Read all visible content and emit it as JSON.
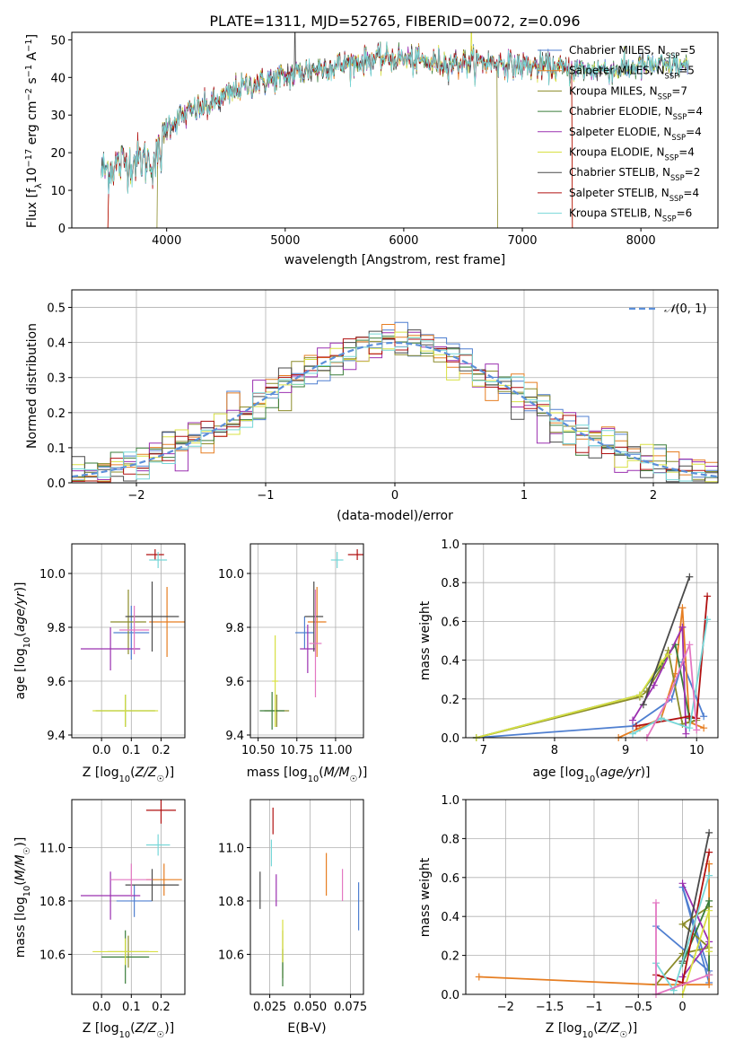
{
  "figure_title": "PLATE=1311, MJD=52765, FIBERID=0072, z=0.096",
  "colors": {
    "Chabrier MILES": "#4f7fd0",
    "Salpeter MILES": "#e67e22",
    "Kroupa MILES": "#8c8c2a",
    "Chabrier ELODIE": "#3a7d3a",
    "Salpeter ELODIE": "#9b30b0",
    "Kroupa ELODIE": "#d8e043",
    "Chabrier STELIB": "#4a4a4a",
    "Salpeter STELIB": "#b01010",
    "Kroupa STELIB": "#76d7d8",
    "normal": "#5b8fd9"
  },
  "chart_data": [
    {
      "id": "spectrum",
      "type": "line",
      "title": "PLATE=1311, MJD=52765, FIBERID=0072, z=0.096",
      "xlabel": "wavelength [Angstrom, rest frame]",
      "ylabel": "Flux [f_λ 10^-17 erg cm^-2 s^-1 A^-1]",
      "xlim": [
        3200,
        8650
      ],
      "ylim": [
        0,
        52
      ],
      "xticks": [
        4000,
        5000,
        6000,
        7000,
        8000
      ],
      "yticks": [
        0,
        10,
        20,
        30,
        40,
        50
      ],
      "legend": "upper right",
      "legend_entries": [
        "Chabrier MILES, N_SSP=5",
        "Salpeter MILES, N_SSP=5",
        "Kroupa MILES, N_SSP=7",
        "Chabrier ELODIE, N_SSP=4",
        "Salpeter ELODIE, N_SSP=4",
        "Kroupa ELODIE, N_SSP=4",
        "Chabrier STELIB, N_SSP=2",
        "Salpeter STELIB, N_SSP=4",
        "Kroupa STELIB, N_SSP=6"
      ],
      "continuum_x": [
        3450,
        3600,
        3750,
        3900,
        3950,
        4000,
        4100,
        4200,
        4400,
        4600,
        4800,
        5000,
        5200,
        5400,
        5600,
        5800,
        6000,
        6200,
        6400,
        6600,
        6800,
        7000,
        7200,
        7400,
        7600,
        7800,
        8000,
        8200,
        8400
      ],
      "continuum_y": [
        15,
        17,
        18,
        18,
        20,
        27,
        29,
        31,
        33,
        37,
        39,
        40,
        42,
        43,
        44,
        45,
        45,
        44,
        44,
        44,
        44,
        43,
        43,
        42,
        42,
        42,
        43,
        43,
        43
      ],
      "model_cutoffs": {
        "Salpeter MILES": [
          3510,
          7420
        ],
        "Kroupa MILES": [
          3920,
          6790
        ],
        "Salpeter STELIB": [
          3505,
          7420
        ]
      }
    },
    {
      "id": "residuals",
      "type": "histogram",
      "xlabel": "(data-model)/error",
      "ylabel": "Normed distribution",
      "xlim": [
        -2.5,
        2.5
      ],
      "ylim": [
        0,
        0.55
      ],
      "xticks": [
        -2,
        -1,
        0,
        1,
        2
      ],
      "yticks": [
        0.0,
        0.1,
        0.2,
        0.3,
        0.4,
        0.5
      ],
      "bin_width": 0.1,
      "normal_label": "N(0,1)",
      "legend": "upper right"
    },
    {
      "id": "age-vs-Z",
      "type": "errorbar",
      "xlabel": "Z [log10(Z/Z☉)]",
      "ylabel": "age [log10(age/yr)]",
      "xlim": [
        -0.1,
        0.28
      ],
      "ylim": [
        9.39,
        10.11
      ],
      "xticks": [
        0.0,
        0.1,
        0.2
      ],
      "yticks": [
        9.4,
        9.6,
        9.8,
        10.0
      ],
      "points": [
        {
          "model": "Chabrier MILES",
          "x": 0.1,
          "y": 9.78,
          "xerr": 0.06,
          "yerr": 0.1
        },
        {
          "model": "Salpeter MILES",
          "x": 0.22,
          "y": 9.82,
          "xerr": 0.06,
          "yerr": 0.13
        },
        {
          "model": "Kroupa MILES",
          "x": 0.09,
          "y": 9.82,
          "xerr": 0.06,
          "yerr": 0.12
        },
        {
          "model": "Chabrier ELODIE",
          "x": 0.08,
          "y": 9.49,
          "xerr": 0.1,
          "yerr": 0.06
        },
        {
          "model": "Salpeter ELODIE",
          "x": 0.03,
          "y": 9.72,
          "xerr": 0.1,
          "yerr": 0.08
        },
        {
          "model": "Kroupa ELODIE",
          "x": 0.08,
          "y": 9.49,
          "xerr": 0.11,
          "yerr": 0.06
        },
        {
          "model": "Chabrier STELIB",
          "x": 0.17,
          "y": 9.84,
          "xerr": 0.09,
          "yerr": 0.13
        },
        {
          "model": "Salpeter STELIB",
          "x": 0.18,
          "y": 10.07,
          "xerr": 0.03,
          "yerr": 0.02
        },
        {
          "model": "Kroupa STELIB",
          "x": 0.19,
          "y": 10.05,
          "xerr": 0.03,
          "yerr": 0.03
        },
        {
          "model": "Salpeter MILES",
          "x": 0.11,
          "y": 9.79,
          "xerr": 0.05,
          "yerr": 0.09
        }
      ]
    },
    {
      "id": "age-vs-mass",
      "type": "errorbar",
      "xlabel": "mass [log10(M/M☉)]",
      "xlim": [
        10.45,
        11.18
      ],
      "ylim": [
        9.39,
        10.11
      ],
      "xticks": [
        10.5,
        10.75,
        11.0
      ],
      "yticks": [
        9.4,
        9.6,
        9.8,
        10.0
      ],
      "points": [
        {
          "model": "Chabrier MILES",
          "x": 10.8,
          "y": 9.78,
          "xerr": 0.06,
          "yerr": 0.06
        },
        {
          "model": "Salpeter MILES",
          "x": 10.88,
          "y": 9.82,
          "xerr": 0.06,
          "yerr": 0.13
        },
        {
          "model": "Kroupa MILES",
          "x": 10.62,
          "y": 9.49,
          "xerr": 0.08,
          "yerr": 0.06
        },
        {
          "model": "Chabrier ELODIE",
          "x": 10.59,
          "y": 9.49,
          "xerr": 0.08,
          "yerr": 0.07
        },
        {
          "model": "Salpeter ELODIE",
          "x": 10.82,
          "y": 9.72,
          "xerr": 0.05,
          "yerr": 0.09
        },
        {
          "model": "Kroupa ELODIE",
          "x": 10.61,
          "y": 9.6,
          "xerr": 0.02,
          "yerr": 0.17
        },
        {
          "model": "Chabrier STELIB",
          "x": 10.86,
          "y": 9.84,
          "xerr": 0.06,
          "yerr": 0.13
        },
        {
          "model": "Salpeter STELIB",
          "x": 11.14,
          "y": 10.07,
          "xerr": 0.06,
          "yerr": 0.02
        },
        {
          "model": "Kroupa STELIB",
          "x": 11.01,
          "y": 10.05,
          "xerr": 0.04,
          "yerr": 0.03
        },
        {
          "model": "Salpeter MILES",
          "x": 10.87,
          "y": 9.74,
          "xerr": 0.04,
          "yerr": 0.2
        }
      ]
    },
    {
      "id": "weight-vs-age",
      "type": "line",
      "xlabel": "age [log10(age/yr)]",
      "ylabel": "mass weight",
      "xlim": [
        6.75,
        10.3
      ],
      "ylim": [
        0,
        1.0
      ],
      "xticks": [
        7,
        8,
        9,
        10
      ],
      "yticks": [
        0.0,
        0.2,
        0.4,
        0.6,
        0.8,
        1.0
      ],
      "series": [
        {
          "model": "Chabrier MILES",
          "x": [
            6.9,
            9.1,
            9.65,
            9.8,
            10.1
          ],
          "y": [
            0.0,
            0.06,
            0.2,
            0.39,
            0.11
          ]
        },
        {
          "model": "Salpeter MILES",
          "x": [
            8.9,
            9.2,
            9.5,
            9.7,
            9.8,
            9.9,
            10.1
          ],
          "y": [
            0.0,
            0.05,
            0.1,
            0.33,
            0.67,
            0.08,
            0.05
          ]
        },
        {
          "model": "Kroupa MILES",
          "x": [
            6.9,
            9.2,
            9.3,
            9.5,
            9.6,
            9.8,
            10.0
          ],
          "y": [
            0.0,
            0.21,
            0.24,
            0.36,
            0.45,
            0.07,
            0.09
          ]
        },
        {
          "model": "Chabrier ELODIE",
          "x": [
            6.9,
            9.2,
            9.7,
            9.9
          ],
          "y": [
            0.0,
            0.22,
            0.48,
            0.1
          ]
        },
        {
          "model": "Salpeter ELODIE",
          "x": [
            9.1,
            9.4,
            9.8,
            9.85
          ],
          "y": [
            0.09,
            0.27,
            0.57,
            0.02
          ]
        },
        {
          "model": "Kroupa ELODIE",
          "x": [
            6.9,
            9.2,
            9.5,
            9.6
          ],
          "y": [
            0.0,
            0.22,
            0.39,
            0.43
          ]
        },
        {
          "model": "Chabrier STELIB",
          "x": [
            9.25,
            9.9
          ],
          "y": [
            0.17,
            0.83
          ]
        },
        {
          "model": "Salpeter STELIB",
          "x": [
            9.15,
            9.9,
            10.0,
            10.15
          ],
          "y": [
            0.06,
            0.11,
            0.1,
            0.73
          ]
        },
        {
          "model": "Kroupa STELIB",
          "x": [
            9.1,
            9.5,
            9.9,
            10.15
          ],
          "y": [
            0.02,
            0.1,
            0.05,
            0.61
          ]
        },
        {
          "model": "Salpeter MILES",
          "x": [
            9.3,
            9.6,
            9.9,
            10.0
          ],
          "y": [
            0.0,
            0.2,
            0.48,
            0.04
          ]
        }
      ]
    },
    {
      "id": "mass-vs-Z",
      "type": "errorbar",
      "xlabel": "Z [log10(Z/Z☉)]",
      "ylabel": "mass [log10(M/M☉)]",
      "xlim": [
        -0.1,
        0.28
      ],
      "ylim": [
        10.45,
        11.18
      ],
      "xticks": [
        0.0,
        0.1,
        0.2
      ],
      "yticks": [
        10.6,
        10.8,
        11.0
      ],
      "points": [
        {
          "model": "Chabrier MILES",
          "x": 0.11,
          "y": 10.8,
          "xerr": 0.06,
          "yerr": 0.06
        },
        {
          "model": "Salpeter MILES",
          "x": 0.21,
          "y": 10.88,
          "xerr": 0.06,
          "yerr": 0.06
        },
        {
          "model": "Kroupa MILES",
          "x": 0.09,
          "y": 10.61,
          "xerr": 0.07,
          "yerr": 0.06
        },
        {
          "model": "Chabrier ELODIE",
          "x": 0.08,
          "y": 10.59,
          "xerr": 0.08,
          "yerr": 0.1
        },
        {
          "model": "Salpeter ELODIE",
          "x": 0.03,
          "y": 10.82,
          "xerr": 0.1,
          "yerr": 0.09
        },
        {
          "model": "Kroupa ELODIE",
          "x": 0.08,
          "y": 10.61,
          "xerr": 0.11,
          "yerr": 0.05
        },
        {
          "model": "Chabrier STELIB",
          "x": 0.17,
          "y": 10.86,
          "xerr": 0.09,
          "yerr": 0.06
        },
        {
          "model": "Salpeter STELIB",
          "x": 0.2,
          "y": 11.14,
          "xerr": 0.05,
          "yerr": 0.05
        },
        {
          "model": "Kroupa STELIB",
          "x": 0.19,
          "y": 11.01,
          "xerr": 0.04,
          "yerr": 0.04
        },
        {
          "model": "Salpeter MILES",
          "x": 0.1,
          "y": 10.88,
          "xerr": 0.07,
          "yerr": 0.06
        }
      ]
    },
    {
      "id": "mass-vs-ebv",
      "type": "errorbar",
      "xlabel": "E(B-V)",
      "xlim": [
        0.013,
        0.083
      ],
      "ylim": [
        10.45,
        11.18
      ],
      "xticks": [
        0.025,
        0.05,
        0.075
      ],
      "yticks": [
        10.6,
        10.8,
        11.0
      ],
      "points": [
        {
          "model": "Chabrier MILES",
          "x": 0.08,
          "y": 10.78,
          "yerr": 0.09
        },
        {
          "model": "Salpeter MILES",
          "x": 0.06,
          "y": 10.9,
          "yerr": 0.08
        },
        {
          "model": "Kroupa MILES",
          "x": 0.033,
          "y": 10.6,
          "yerr": 0.09
        },
        {
          "model": "Chabrier ELODIE",
          "x": 0.033,
          "y": 10.55,
          "yerr": 0.07
        },
        {
          "model": "Salpeter ELODIE",
          "x": 0.029,
          "y": 10.84,
          "yerr": 0.06
        },
        {
          "model": "Kroupa ELODIE",
          "x": 0.033,
          "y": 10.65,
          "yerr": 0.08
        },
        {
          "model": "Chabrier STELIB",
          "x": 0.019,
          "y": 10.84,
          "yerr": 0.07
        },
        {
          "model": "Salpeter STELIB",
          "x": 0.027,
          "y": 11.1,
          "yerr": 0.05
        },
        {
          "model": "Kroupa STELIB",
          "x": 0.026,
          "y": 10.98,
          "yerr": 0.05
        },
        {
          "model": "Salpeter MILES",
          "x": 0.07,
          "y": 10.86,
          "yerr": 0.06
        }
      ]
    },
    {
      "id": "weight-vs-Z",
      "type": "line",
      "xlabel": "Z [log10(Z/Z☉)]",
      "ylabel": "mass weight",
      "xlim": [
        -2.45,
        0.4
      ],
      "ylim": [
        0,
        1.0
      ],
      "xticks": [
        -2.0,
        -1.5,
        -1.0,
        -0.5,
        0.0
      ],
      "yticks": [
        0.0,
        0.2,
        0.4,
        0.6,
        0.8,
        1.0
      ],
      "series": [
        {
          "model": "Chabrier MILES",
          "x": [
            -0.3,
            0.3,
            0.0,
            0.3
          ],
          "y": [
            0.35,
            0.12,
            0.55,
            0.06
          ]
        },
        {
          "model": "Salpeter MILES",
          "x": [
            -2.3,
            -0.3,
            0.3,
            0.3
          ],
          "y": [
            0.09,
            0.05,
            0.05,
            0.67
          ]
        },
        {
          "model": "Kroupa MILES",
          "x": [
            -0.3,
            0.0,
            0.3,
            0.0,
            0.3
          ],
          "y": [
            0.05,
            0.21,
            0.24,
            0.36,
            0.45
          ]
        },
        {
          "model": "Chabrier ELODIE",
          "x": [
            0.0,
            0.3,
            0.3
          ],
          "y": [
            0.16,
            0.48,
            0.1
          ]
        },
        {
          "model": "Salpeter ELODIE",
          "x": [
            0.0,
            0.3,
            0.0
          ],
          "y": [
            0.57,
            0.27,
            0.09
          ]
        },
        {
          "model": "Kroupa ELODIE",
          "x": [
            0.0,
            0.3,
            0.3
          ],
          "y": [
            0.0,
            0.43,
            0.22
          ]
        },
        {
          "model": "Chabrier STELIB",
          "x": [
            0.0,
            0.3
          ],
          "y": [
            0.17,
            0.83
          ]
        },
        {
          "model": "Salpeter STELIB",
          "x": [
            -0.3,
            0.0,
            0.3
          ],
          "y": [
            0.1,
            0.06,
            0.73
          ]
        },
        {
          "model": "Kroupa STELIB",
          "x": [
            -0.3,
            -0.1,
            0.3
          ],
          "y": [
            0.16,
            0.02,
            0.61
          ]
        },
        {
          "model": "Salpeter MILES",
          "x": [
            -0.3,
            -0.3,
            0.3
          ],
          "y": [
            0.47,
            0.0,
            0.1
          ]
        }
      ]
    }
  ]
}
